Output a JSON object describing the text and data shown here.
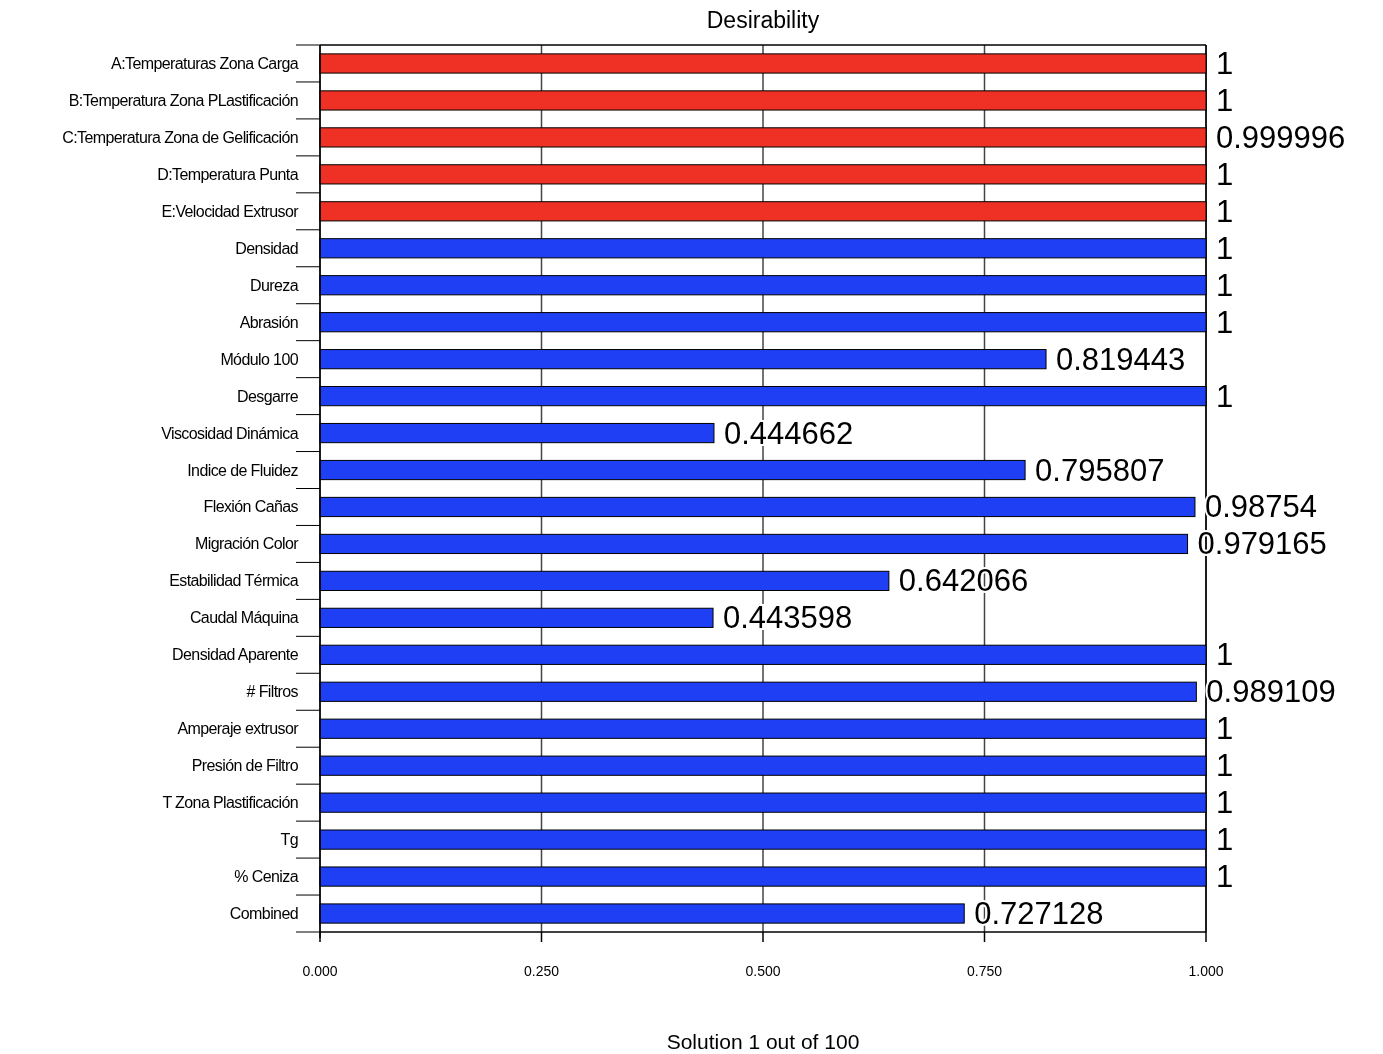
{
  "chart_data": {
    "type": "bar",
    "orientation": "horizontal",
    "title": "Desirability",
    "categories": [
      "A:Temperaturas Zona Carga",
      "B:Temperatura Zona PLastificación",
      "C:Temperatura Zona de Gelificación",
      "D:Temperatura Punta",
      "E:Velocidad Extrusor",
      "Densidad",
      "Dureza",
      "Abrasión",
      "Módulo 100",
      "Desgarre",
      "Viscosidad Dinámica",
      "Indice de Fluidez",
      "Flexión Cañas",
      "Migración Color",
      "Estabilidad Térmica",
      "Caudal Máquina",
      "Densidad Aparente",
      "# Filtros",
      "Amperaje extrusor",
      "Presión de Filtro",
      "T Zona Plastificación",
      "Tg",
      "% Ceniza",
      "Combined"
    ],
    "values": [
      1,
      1,
      0.999996,
      1,
      1,
      1,
      1,
      1,
      0.819443,
      1,
      0.444662,
      0.795807,
      0.98754,
      0.979165,
      0.642066,
      0.443598,
      1,
      0.989109,
      1,
      1,
      1,
      1,
      1,
      0.727128
    ],
    "colors": [
      "#ee3124",
      "#ee3124",
      "#ee3124",
      "#ee3124",
      "#ee3124",
      "#1f3ff5",
      "#1f3ff5",
      "#1f3ff5",
      "#1f3ff5",
      "#1f3ff5",
      "#1f3ff5",
      "#1f3ff5",
      "#1f3ff5",
      "#1f3ff5",
      "#1f3ff5",
      "#1f3ff5",
      "#1f3ff5",
      "#1f3ff5",
      "#1f3ff5",
      "#1f3ff5",
      "#1f3ff5",
      "#1f3ff5",
      "#1f3ff5",
      "#1f3ff5"
    ],
    "xlim": [
      0,
      1
    ],
    "xticks": [
      {
        "value": 0,
        "label": "0.000"
      },
      {
        "value": 0.25,
        "label": "0.250"
      },
      {
        "value": 0.5,
        "label": "0.500"
      },
      {
        "value": 0.75,
        "label": "0.750"
      },
      {
        "value": 1,
        "label": "1.000"
      }
    ],
    "grid": "x",
    "data_labels": true,
    "annotations": [
      "Solution 1 out of 100"
    ]
  }
}
